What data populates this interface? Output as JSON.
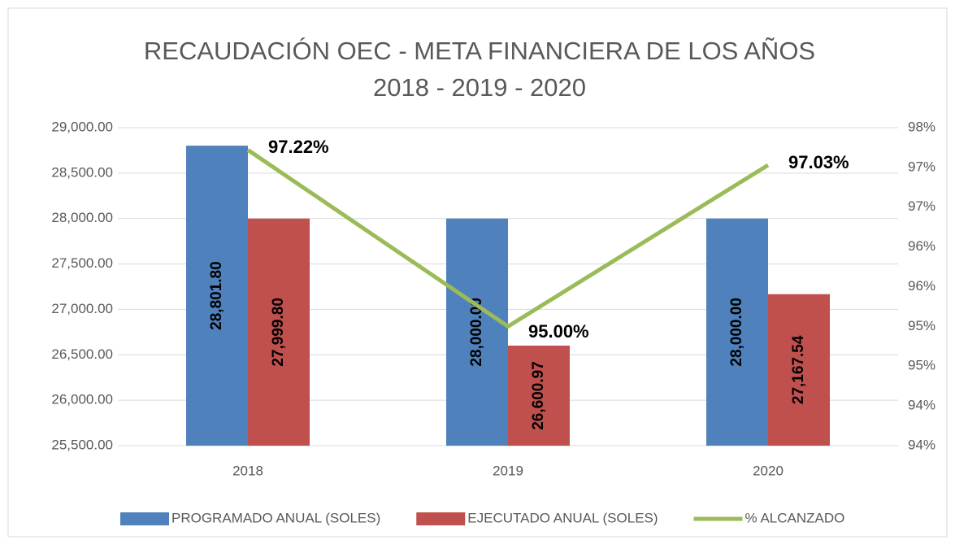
{
  "chart_data": {
    "type": "bar_line",
    "title": "RECAUDACIÓN OEC  - META FINANCIERA DE LOS AÑOS 2018 - 2019 - 2020",
    "categories": [
      "2018",
      "2019",
      "2020"
    ],
    "series": [
      {
        "name": "PROGRAMADO ANUAL (SOLES)",
        "color": "#4f81bd",
        "type": "bar",
        "values": [
          28801.8,
          28000,
          28000
        ],
        "value_labels": [
          "28,801.80",
          "28,000.00",
          "28,000.00"
        ]
      },
      {
        "name": "EJECUTADO ANUAL (SOLES)",
        "color": "#c0504d",
        "type": "bar",
        "values": [
          27999.8,
          26600.97,
          27167.54
        ],
        "value_labels": [
          "27,999.80",
          "26,600.97",
          "27,167.54"
        ]
      },
      {
        "name": "% ALCANZADO",
        "color": "#9bbb59",
        "type": "line",
        "axis": "y2",
        "values": [
          97.22,
          95.0,
          97.03
        ],
        "value_labels": [
          "97.22%",
          "95.00%",
          "97.03%"
        ]
      }
    ],
    "ylim": [
      25500,
      29000
    ],
    "yticks": [
      {
        "value": 25500,
        "label": "25,500.00"
      },
      {
        "value": 26000,
        "label": "26,000.00"
      },
      {
        "value": 26500,
        "label": "26,500.00"
      },
      {
        "value": 27000,
        "label": "27,000.00"
      },
      {
        "value": 27500,
        "label": "27,500.00"
      },
      {
        "value": 28000,
        "label": "28,000.00"
      },
      {
        "value": 28500,
        "label": "28,500.00"
      },
      {
        "value": 29000,
        "label": "29,000.00"
      }
    ],
    "y2lim": [
      93.5,
      97.5
    ],
    "y2ticks": [
      {
        "value": 93.5,
        "label": "94%"
      },
      {
        "value": 94,
        "label": "94%"
      },
      {
        "value": 94.5,
        "label": "95%"
      },
      {
        "value": 95,
        "label": "95%"
      },
      {
        "value": 95.5,
        "label": "96%"
      },
      {
        "value": 96,
        "label": "96%"
      },
      {
        "value": 96.5,
        "label": "97%"
      },
      {
        "value": 97,
        "label": "97%"
      },
      {
        "value": 97.5,
        "label": "98%"
      }
    ],
    "grid": true,
    "legend": "bottom"
  }
}
